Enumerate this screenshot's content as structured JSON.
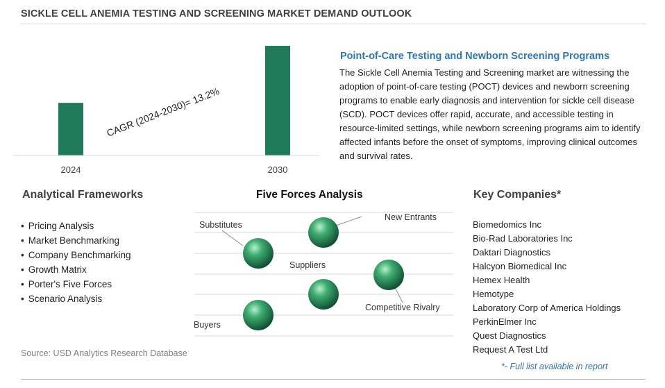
{
  "title": "SICKLE CELL ANEMIA TESTING AND SCREENING MARKET DEMAND OUTLOOK",
  "chart_data": {
    "type": "bar",
    "categories": [
      "2024",
      "2030"
    ],
    "values": [
      0.48,
      1.0
    ],
    "ylim": [
      0,
      1.0
    ],
    "annotation": "CAGR (2024-2030)=  13.2%",
    "bar_color": "#217a5a",
    "grid": false,
    "title": "",
    "xlabel": "",
    "ylabel": ""
  },
  "poct": {
    "heading": "Point-of-Care Testing and Newborn Screening Programs",
    "body": "The Sickle Cell Anemia Testing and Screening market are witnessing the adoption of point-of-care testing (POCT) devices and newborn screening programs to enable early diagnosis and intervention for sickle cell disease (SCD). POCT devices offer rapid, accurate, and accessible testing in resource-limited settings, while newborn screening programs aim to identify affected infants before the onset of symptoms, improving clinical outcomes and survival rates."
  },
  "frameworks": {
    "heading": "Analytical Frameworks",
    "items": [
      "Pricing Analysis",
      "Market Benchmarking",
      "Company Benchmarking",
      "Growth Matrix",
      "Porter's Five Forces",
      "Scenario Analysis"
    ]
  },
  "forces": {
    "heading": "Five Forces Analysis",
    "labels": {
      "substitutes": "Substitutes",
      "new_entrants": "New Entrants",
      "suppliers": "Suppliers",
      "competitive_rivalry": "Competitive Rivalry",
      "buyers": "Buyers"
    },
    "sphere_color": "#2e8b57"
  },
  "companies": {
    "heading": "Key Companies*",
    "items": [
      "Biomedomics Inc",
      "Bio-Rad Laboratories Inc",
      "Daktari Diagnostics",
      "Halcyon Biomedical Inc",
      "Hemex Health",
      "Hemotype",
      "Laboratory Corp of America Holdings",
      "PerkinElmer Inc",
      "Quest Diagnostics",
      "Request A Test Ltd"
    ],
    "note": "*- Full list available in report"
  },
  "source": "Source: USD Analytics Research Database"
}
